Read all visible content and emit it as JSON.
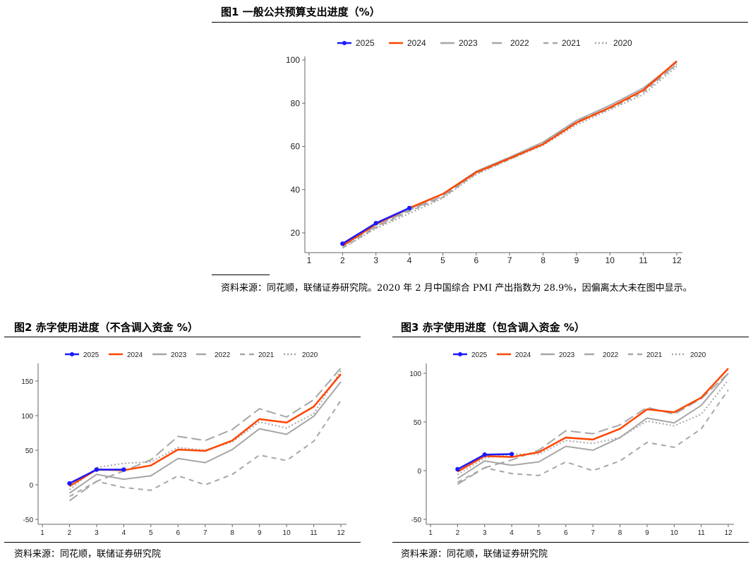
{
  "figures": [
    {
      "title": "图1   一般公共预算支出进度（%）",
      "source": "资料来源：同花顺，联储证券研究院。2020 年 2 月中国综合 PMI 产出指数为 28.9%，因偏离太大未在图中显示。"
    },
    {
      "title": "图2   赤字使用进度（不含调入资金  %）",
      "source": "资料来源：同花顺，联储证券研究院"
    },
    {
      "title": "图3   赤字使用进度（包含调入资金  %）",
      "source": "资料来源：同花顺，联储证券研究院"
    }
  ],
  "series_styles": {
    "2025": {
      "color": "#1a1aff",
      "dash": "",
      "marker": true
    },
    "2024": {
      "color": "#ff4500",
      "dash": "",
      "marker": false
    },
    "2023": {
      "color": "#a6a6a6",
      "dash": "",
      "marker": false
    },
    "2022": {
      "color": "#a6a6a6",
      "dash": "14 6",
      "marker": false
    },
    "2021": {
      "color": "#a6a6a6",
      "dash": "7 6",
      "marker": false
    },
    "2020": {
      "color": "#a6a6a6",
      "dash": "2 3",
      "marker": false
    }
  },
  "chart_data": [
    {
      "type": "line",
      "x": [
        1,
        2,
        3,
        4,
        5,
        6,
        7,
        8,
        9,
        10,
        11,
        12
      ],
      "xticks": [
        "1",
        "2",
        "3",
        "4",
        "5",
        "6",
        "7",
        "8",
        "9",
        "10",
        "11",
        "12"
      ],
      "yticks": [
        20,
        40,
        60,
        80,
        100
      ],
      "ylim": [
        10,
        102
      ],
      "legend": "top",
      "series": [
        {
          "name": "2025",
          "x": [
            2,
            3,
            4
          ],
          "values": [
            15,
            24.5,
            31.5
          ]
        },
        {
          "name": "2024",
          "x": [
            2,
            3,
            4,
            5,
            6,
            7,
            8,
            9,
            10,
            11,
            12
          ],
          "values": [
            14,
            24,
            31.5,
            38,
            48,
            54.5,
            61,
            71,
            78,
            86,
            99.5
          ]
        },
        {
          "name": "2023",
          "x": [
            2,
            3,
            4,
            5,
            6,
            7,
            8,
            9,
            10,
            11,
            12
          ],
          "values": [
            14.5,
            24,
            31,
            38,
            48.5,
            55,
            62,
            72,
            79,
            87,
            99
          ]
        },
        {
          "name": "2022",
          "x": [
            2,
            3,
            4,
            5,
            6,
            7,
            8,
            9,
            10,
            11,
            12
          ],
          "values": [
            14,
            23,
            30.5,
            37,
            48,
            54.5,
            61.5,
            71.5,
            78,
            86,
            98
          ]
        },
        {
          "name": "2021",
          "x": [
            2,
            3,
            4,
            5,
            6,
            7,
            8,
            9,
            10,
            11,
            12
          ],
          "values": [
            13,
            22.5,
            30,
            36.5,
            47.5,
            54,
            61,
            71,
            77.5,
            85,
            98
          ]
        },
        {
          "name": "2020",
          "x": [
            2,
            3,
            4,
            5,
            6,
            7,
            8,
            9,
            10,
            11,
            12
          ],
          "values": [
            13,
            22,
            29,
            36,
            47,
            54,
            60.5,
            70,
            77,
            84,
            97
          ]
        }
      ]
    },
    {
      "type": "line",
      "x": [
        1,
        2,
        3,
        4,
        5,
        6,
        7,
        8,
        9,
        10,
        11,
        12
      ],
      "xticks": [
        "1",
        "2",
        "3",
        "4",
        "5",
        "6",
        "7",
        "8",
        "9",
        "10",
        "11",
        "12"
      ],
      "yticks": [
        -50,
        0,
        50,
        100,
        150
      ],
      "ylim": [
        -55,
        175
      ],
      "legend": "top",
      "series": [
        {
          "name": "2025",
          "x": [
            2,
            3,
            4
          ],
          "values": [
            2,
            22,
            22
          ]
        },
        {
          "name": "2024",
          "x": [
            2,
            3,
            4,
            5,
            6,
            7,
            8,
            9,
            10,
            11,
            12
          ],
          "values": [
            -2,
            22,
            21,
            28,
            51,
            49,
            64,
            95,
            90,
            113,
            160
          ]
        },
        {
          "name": "2023",
          "x": [
            2,
            3,
            4,
            5,
            6,
            7,
            8,
            9,
            10,
            11,
            12
          ],
          "values": [
            -12,
            15,
            8,
            13,
            38,
            32,
            51,
            81,
            73,
            99,
            149
          ]
        },
        {
          "name": "2022",
          "x": [
            2,
            3,
            4,
            5,
            6,
            7,
            8,
            9,
            10,
            11,
            12
          ],
          "values": [
            -23,
            5,
            20,
            36,
            70,
            64,
            80,
            110,
            98,
            123,
            169
          ]
        },
        {
          "name": "2021",
          "x": [
            2,
            3,
            4,
            5,
            6,
            7,
            8,
            9,
            10,
            11,
            12
          ],
          "values": [
            -17,
            5,
            -4,
            -8,
            13,
            0,
            15,
            43,
            35,
            63,
            122
          ]
        },
        {
          "name": "2020",
          "x": [
            2,
            3,
            4,
            5,
            6,
            7,
            8,
            9,
            10,
            11,
            12
          ],
          "values": [
            -7,
            25,
            31,
            33,
            54,
            50,
            62,
            91,
            82,
            103,
            165
          ]
        }
      ]
    },
    {
      "type": "line",
      "x": [
        1,
        2,
        3,
        4,
        5,
        6,
        7,
        8,
        9,
        10,
        11,
        12
      ],
      "xticks": [
        "1",
        "2",
        "3",
        "4",
        "5",
        "6",
        "7",
        "8",
        "9",
        "10",
        "11",
        "12"
      ],
      "yticks": [
        -50,
        0,
        50,
        100
      ],
      "ylim": [
        -55,
        110
      ],
      "legend": "top",
      "series": [
        {
          "name": "2025",
          "x": [
            2,
            3,
            4
          ],
          "values": [
            1.5,
            16.5,
            17
          ]
        },
        {
          "name": "2024",
          "x": [
            2,
            3,
            4,
            5,
            6,
            7,
            8,
            9,
            10,
            11,
            12
          ],
          "values": [
            -1,
            15,
            14,
            19,
            34,
            32,
            43,
            63,
            60,
            75,
            105
          ]
        },
        {
          "name": "2023",
          "x": [
            2,
            3,
            4,
            5,
            6,
            7,
            8,
            9,
            10,
            11,
            12
          ],
          "values": [
            -8,
            10,
            5.5,
            9,
            25,
            21,
            34,
            54,
            49,
            67,
            100
          ]
        },
        {
          "name": "2022",
          "x": [
            2,
            3,
            4,
            5,
            6,
            7,
            8,
            9,
            10,
            11,
            12
          ],
          "values": [
            -14,
            3,
            11,
            21,
            41,
            38,
            47,
            65,
            58,
            74,
            100
          ]
        },
        {
          "name": "2021",
          "x": [
            2,
            3,
            4,
            5,
            6,
            7,
            8,
            9,
            10,
            11,
            12
          ],
          "values": [
            -12,
            3,
            -3,
            -5,
            9,
            0,
            10,
            29,
            24,
            43,
            83
          ]
        },
        {
          "name": "2020",
          "x": [
            2,
            3,
            4,
            5,
            6,
            7,
            8,
            9,
            10,
            11,
            12
          ],
          "values": [
            -4,
            13,
            17,
            17,
            31,
            28,
            34,
            51,
            46,
            58,
            93
          ]
        }
      ]
    }
  ]
}
